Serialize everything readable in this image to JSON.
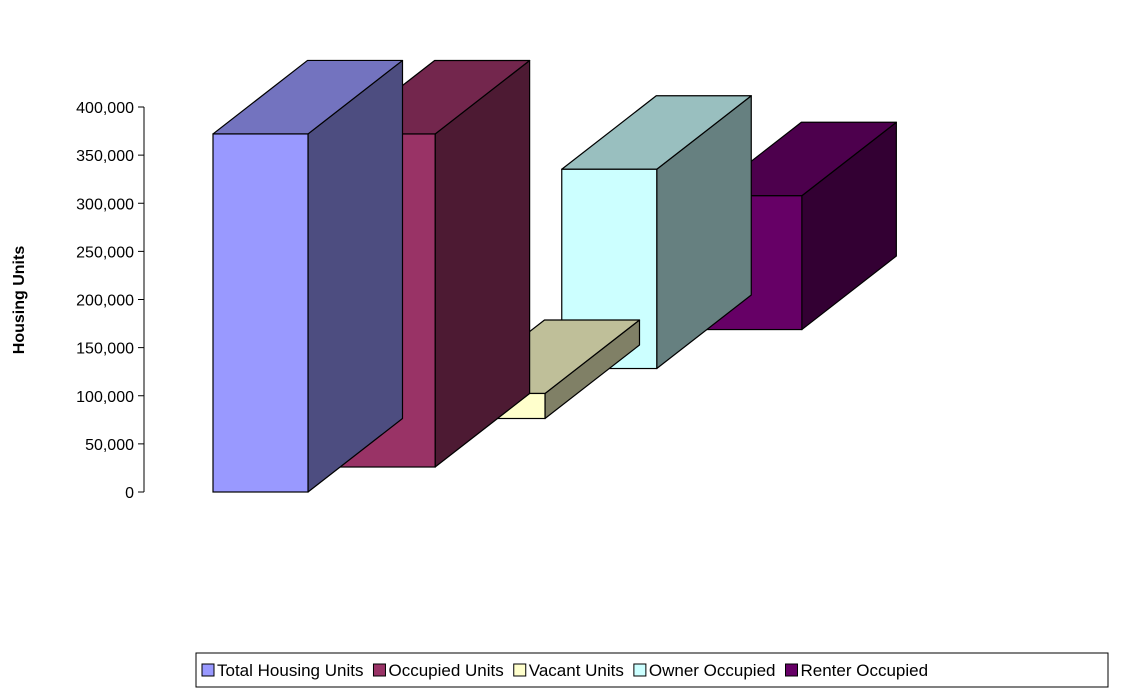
{
  "chart_data": {
    "type": "bar",
    "title": "",
    "xlabel": "",
    "ylabel": "Housing Units",
    "ylim": [
      0,
      400000
    ],
    "yticks": [
      0,
      50000,
      100000,
      150000,
      200000,
      250000,
      300000,
      350000,
      400000
    ],
    "ytick_labels": [
      "0",
      "50,000",
      "100,000",
      "150,000",
      "200,000",
      "250,000",
      "300,000",
      "350,000",
      "400,000"
    ],
    "grid": false,
    "legend_position": "bottom",
    "series": [
      {
        "name": "Total Housing Units",
        "value": 372000,
        "color": "#9999ff"
      },
      {
        "name": "Occupied Units",
        "value": 346000,
        "color": "#993366"
      },
      {
        "name": "Vacant Units",
        "value": 26000,
        "color": "#ffffcc"
      },
      {
        "name": "Owner Occupied",
        "value": 207000,
        "color": "#ccffff"
      },
      {
        "name": "Renter Occupied",
        "value": 139000,
        "color": "#660066"
      }
    ]
  }
}
